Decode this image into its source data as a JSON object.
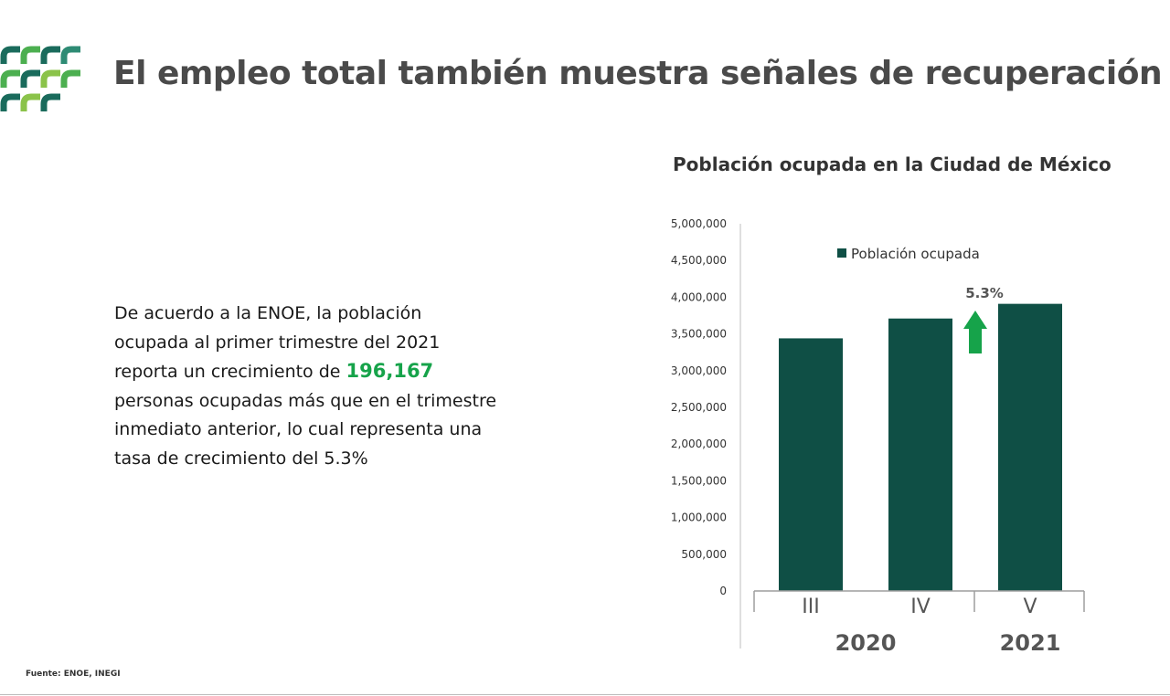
{
  "colors": {
    "bar": "#0f4f45",
    "accent_green": "#16a34a",
    "title_gray": "#4a4a4a",
    "logo_teal": "#1a6b5c",
    "logo_green": "#4caf50",
    "logo_lime": "#8bc34a"
  },
  "icons": {
    "logo": "city-logo-arches-icon",
    "arrow": "up-arrow-icon"
  },
  "page": {
    "title": "El empleo total también muestra señales de recuperación"
  },
  "text": {
    "line1": "De acuerdo a la ENOE, la población",
    "line2": "ocupada al primer trimestre del 2021",
    "line3_pre": "reporta un crecimiento de ",
    "line3_highlight": "196,167",
    "line4": "personas ocupadas más que en el trimestre",
    "line5": "inmediato anterior, lo cual representa una",
    "line6": "tasa de crecimiento del 5.3%"
  },
  "source": "Fuente: ENOE, INEGI",
  "chart_data": {
    "type": "bar",
    "title": "Población ocupada en la Ciudad de México",
    "categories": [
      "III",
      "IV",
      "V"
    ],
    "groups": [
      {
        "label": "2020",
        "categories": [
          "III",
          "IV"
        ]
      },
      {
        "label": "2021",
        "categories": [
          "V"
        ]
      }
    ],
    "series": [
      {
        "name": "Población ocupada",
        "values": [
          3440000,
          3710000,
          3910000
        ]
      }
    ],
    "ylim": [
      0,
      5000000
    ],
    "yticks": [
      "0",
      "500,000",
      "1,000,000",
      "1,500,000",
      "2,000,000",
      "2,500,000",
      "3,000,000",
      "3,500,000",
      "4,000,000",
      "4,500,000",
      "5,000,000"
    ],
    "annotation": {
      "text": "5.3%",
      "category": "V"
    },
    "legend_position": "top-center",
    "grid": false
  }
}
